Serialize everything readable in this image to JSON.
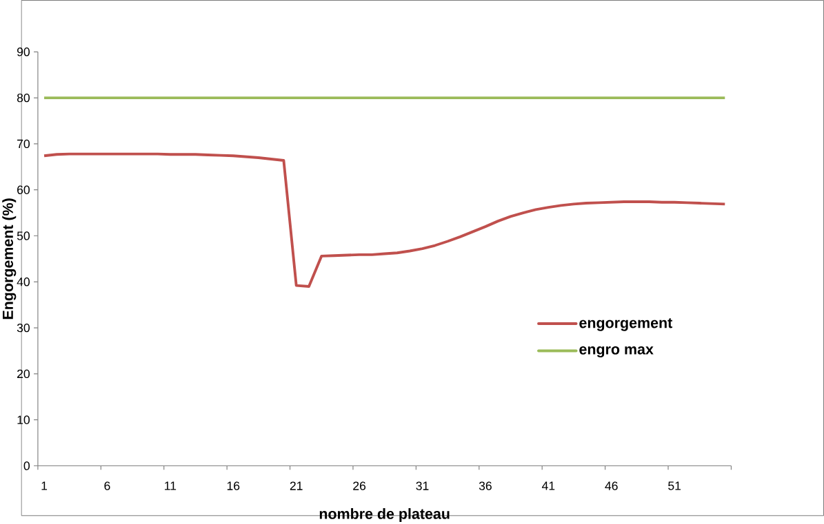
{
  "chart_data": {
    "type": "line",
    "xlabel": "nombre de plateau",
    "ylabel": "Engorgement (%)",
    "categories": [
      "1",
      null,
      null,
      null,
      null,
      "6",
      null,
      null,
      null,
      null,
      "11",
      null,
      null,
      null,
      null,
      "16",
      null,
      null,
      null,
      null,
      "21",
      null,
      null,
      null,
      null,
      "26",
      null,
      null,
      null,
      null,
      "31",
      null,
      null,
      null,
      null,
      "36",
      null,
      null,
      null,
      null,
      "41",
      null,
      null,
      null,
      null,
      "46",
      null,
      null,
      null,
      null,
      "51",
      null,
      null,
      null,
      null
    ],
    "series": [
      {
        "name": "engorgement",
        "color": "#c0504d",
        "values": [
          67.4,
          67.7,
          67.8,
          67.8,
          67.8,
          67.8,
          67.8,
          67.8,
          67.8,
          67.8,
          67.7,
          67.7,
          67.7,
          67.6,
          67.5,
          67.4,
          67.2,
          67.0,
          66.7,
          66.4,
          39.2,
          39.0,
          45.6,
          45.7,
          45.8,
          45.9,
          45.9,
          46.1,
          46.3,
          46.7,
          47.2,
          47.9,
          48.8,
          49.8,
          50.9,
          52.0,
          53.2,
          54.2,
          55.0,
          55.7,
          56.2,
          56.6,
          56.9,
          57.1,
          57.2,
          57.3,
          57.4,
          57.4,
          57.4,
          57.3,
          57.3,
          57.2,
          57.1,
          57.0,
          56.9
        ]
      },
      {
        "name": "engro max",
        "color": "#9bbb59",
        "values": [
          80,
          80,
          80,
          80,
          80,
          80,
          80,
          80,
          80,
          80,
          80,
          80,
          80,
          80,
          80,
          80,
          80,
          80,
          80,
          80,
          80,
          80,
          80,
          80,
          80,
          80,
          80,
          80,
          80,
          80,
          80,
          80,
          80,
          80,
          80,
          80,
          80,
          80,
          80,
          80,
          80,
          80,
          80,
          80,
          80,
          80,
          80,
          80,
          80,
          80,
          80,
          80,
          80,
          80,
          80
        ]
      }
    ],
    "ylim": [
      0,
      90
    ],
    "yticks": [
      0,
      10,
      20,
      30,
      40,
      50,
      60,
      70,
      80,
      90
    ],
    "grid": false,
    "legend": "right",
    "marker": "none",
    "line_style": "solid"
  }
}
